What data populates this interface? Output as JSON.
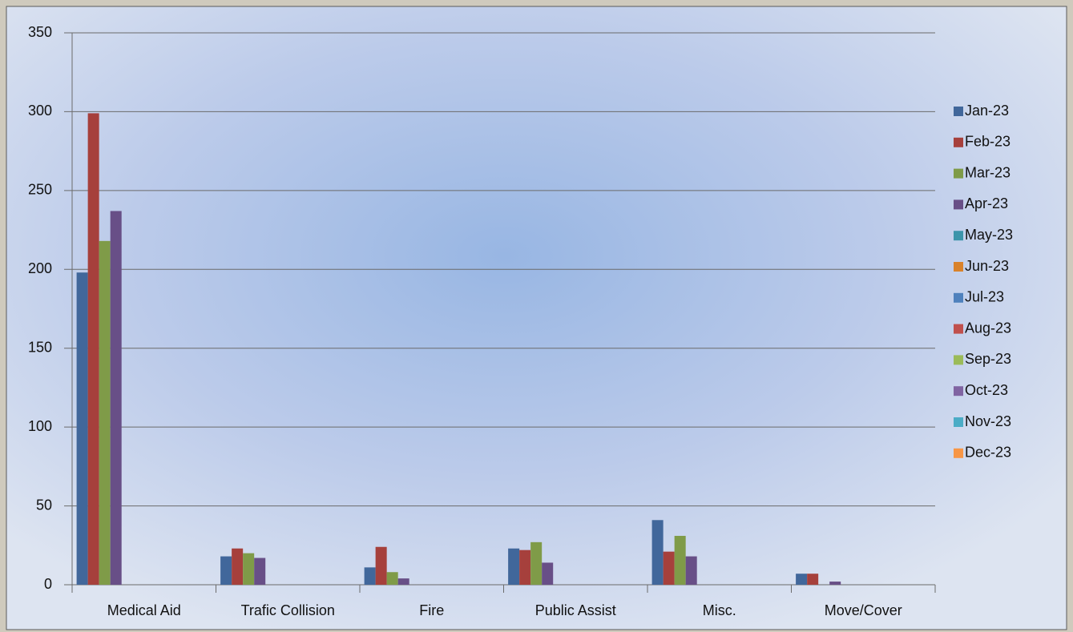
{
  "chart_data": {
    "type": "bar",
    "categories": [
      "Medical Aid",
      "Trafic Collision",
      "Fire",
      "Public Assist",
      "Misc.",
      "Move/Cover"
    ],
    "series": [
      {
        "name": "Jan-23",
        "color": "#41679b",
        "values": [
          198,
          18,
          11,
          23,
          41,
          7
        ]
      },
      {
        "name": "Feb-23",
        "color": "#a6403c",
        "values": [
          299,
          23,
          24,
          22,
          21,
          7
        ]
      },
      {
        "name": "Mar-23",
        "color": "#7f9b48",
        "values": [
          218,
          20,
          8,
          27,
          31,
          0
        ]
      },
      {
        "name": "Apr-23",
        "color": "#684f87",
        "values": [
          237,
          17,
          4,
          14,
          18,
          2
        ]
      },
      {
        "name": "May-23",
        "color": "#3c95ab",
        "values": [
          null,
          null,
          null,
          null,
          null,
          null
        ]
      },
      {
        "name": "Jun-23",
        "color": "#d9822b",
        "values": [
          null,
          null,
          null,
          null,
          null,
          null
        ]
      },
      {
        "name": "Jul-23",
        "color": "#4f81bd",
        "values": [
          null,
          null,
          null,
          null,
          null,
          null
        ]
      },
      {
        "name": "Aug-23",
        "color": "#c0504d",
        "values": [
          null,
          null,
          null,
          null,
          null,
          null
        ]
      },
      {
        "name": "Sep-23",
        "color": "#9bbb59",
        "values": [
          null,
          null,
          null,
          null,
          null,
          null
        ]
      },
      {
        "name": "Oct-23",
        "color": "#8064a2",
        "values": [
          null,
          null,
          null,
          null,
          null,
          null
        ]
      },
      {
        "name": "Nov-23",
        "color": "#4bacc6",
        "values": [
          null,
          null,
          null,
          null,
          null,
          null
        ]
      },
      {
        "name": "Dec-23",
        "color": "#f79646",
        "values": [
          null,
          null,
          null,
          null,
          null,
          null
        ]
      }
    ],
    "ylim": [
      0,
      350
    ],
    "yticks": [
      0,
      50,
      100,
      150,
      200,
      250,
      300,
      350
    ],
    "grid": true,
    "legend": "right"
  }
}
